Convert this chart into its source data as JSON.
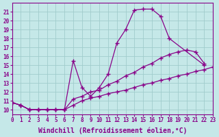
{
  "xlabel": "Windchill (Refroidissement éolien,°C)",
  "bg_color": "#c5e8e8",
  "line_color": "#880088",
  "grid_color": "#a0cccc",
  "line1_x": [
    0,
    1,
    2,
    3,
    4,
    5,
    6,
    7,
    8,
    9,
    10,
    11,
    12,
    13,
    14,
    15,
    16,
    17,
    18,
    22
  ],
  "line1_y": [
    10.8,
    10.5,
    10.0,
    10.0,
    10.0,
    10.0,
    10.0,
    15.5,
    12.5,
    11.5,
    12.5,
    14.0,
    17.5,
    19.0,
    21.2,
    21.3,
    21.3,
    20.5,
    18.0,
    15.0
  ],
  "line2_x": [
    0,
    1,
    2,
    3,
    4,
    5,
    6,
    7,
    8,
    9,
    10,
    11,
    12,
    13,
    14,
    15,
    16,
    17,
    18,
    19,
    20,
    21,
    22
  ],
  "line2_y": [
    10.8,
    10.5,
    10.0,
    10.0,
    10.0,
    10.0,
    10.0,
    11.2,
    11.5,
    12.0,
    12.2,
    12.8,
    13.2,
    13.8,
    14.2,
    14.8,
    15.2,
    15.8,
    16.2,
    16.5,
    16.7,
    16.5,
    15.2
  ],
  "line3_x": [
    0,
    1,
    2,
    3,
    4,
    5,
    6,
    7,
    8,
    9,
    10,
    11,
    12,
    13,
    14,
    15,
    16,
    17,
    18,
    19,
    20,
    21,
    22,
    23
  ],
  "line3_y": [
    10.8,
    10.5,
    10.0,
    10.0,
    10.0,
    10.0,
    10.0,
    10.5,
    11.0,
    11.3,
    11.5,
    11.8,
    12.0,
    12.2,
    12.5,
    12.8,
    13.0,
    13.3,
    13.5,
    13.8,
    14.0,
    14.3,
    14.5,
    14.8
  ],
  "xlim": [
    0,
    23
  ],
  "ylim": [
    9.5,
    22
  ],
  "yticks": [
    10,
    11,
    12,
    13,
    14,
    15,
    16,
    17,
    18,
    19,
    20,
    21
  ],
  "xticks": [
    0,
    1,
    2,
    3,
    4,
    5,
    6,
    7,
    8,
    9,
    10,
    11,
    12,
    13,
    14,
    15,
    16,
    17,
    18,
    19,
    20,
    21,
    22,
    23
  ],
  "tick_fontsize": 5.5,
  "xlabel_fontsize": 7.0
}
